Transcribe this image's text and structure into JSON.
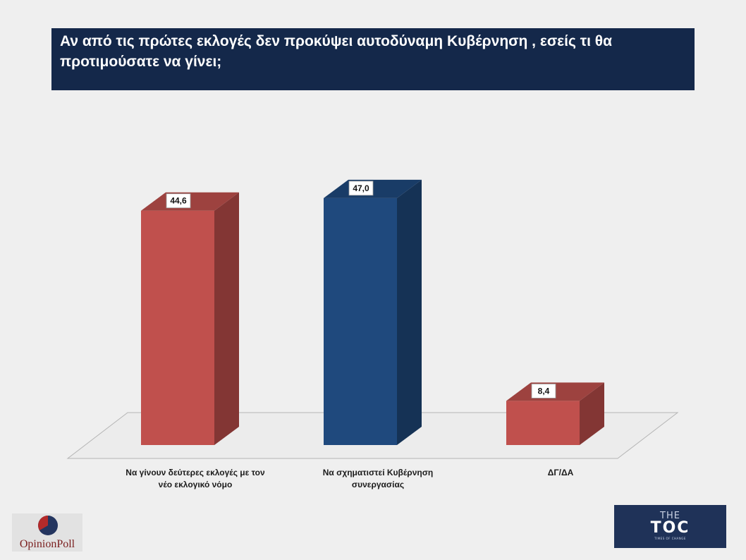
{
  "chart_data": {
    "type": "bar",
    "title": "Αν από τις πρώτες εκλογές δεν προκύψει αυτοδύναμη Κυβέρνηση , εσείς τι θα προτιμούσατε να γίνει;",
    "categories": [
      "Να γίνουν δεύτερες εκλογές με τον νέο εκλογικό νόμο",
      "Να σχηματιστεί Κυβέρνηση συνεργασίας",
      "ΔΓ/ΔΑ"
    ],
    "category_lines": [
      [
        "Να γίνουν δεύτερες εκλογές με τον",
        "νέο εκλογικό νόμο"
      ],
      [
        "Να σχηματιστεί Κυβέρνηση",
        "συνεργασίας"
      ],
      [
        "ΔΓ/ΔΑ"
      ]
    ],
    "values": [
      44.6,
      47.0,
      8.4
    ],
    "value_labels": [
      "44,6",
      "47,0",
      "8,4"
    ],
    "bar_colors": [
      "#c0504d",
      "#1f497d",
      "#c0504d"
    ],
    "ylim": [
      0,
      50
    ],
    "xlabel": "",
    "ylabel": ""
  },
  "logos": {
    "left_brand": "OpinionPoll",
    "right_the": "THE",
    "right_toc": "TOC",
    "right_tagline": "TIMES OF CHANGE"
  }
}
